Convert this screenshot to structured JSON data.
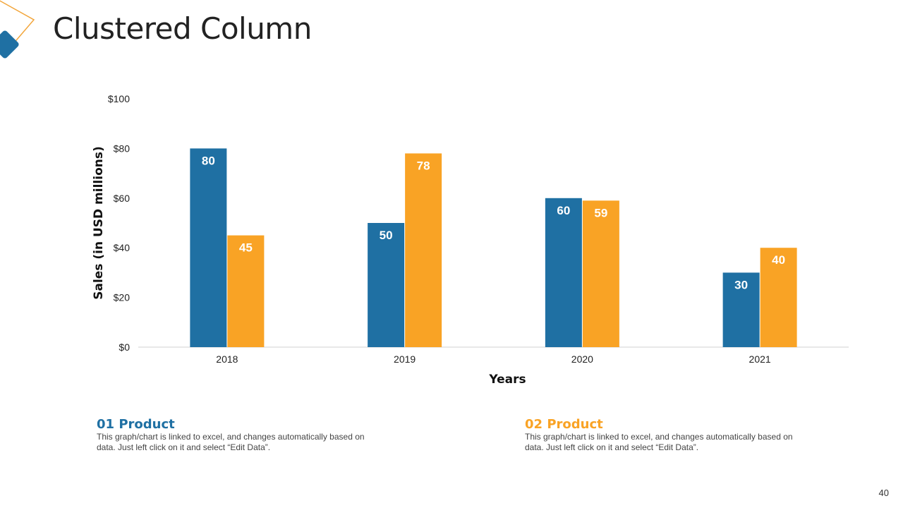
{
  "page": {
    "title": "Clustered Column",
    "page_number": "40"
  },
  "colors": {
    "series1": "#1f70a3",
    "series2": "#f9a325",
    "accent_outline": "#f2a53a",
    "accent_fill": "#1f70a3"
  },
  "legend": [
    {
      "heading": "01 Product",
      "text": "This graph/chart is linked to excel, and changes automatically based on data. Just left click on it and select “Edit Data”."
    },
    {
      "heading": "02 Product",
      "text": "This graph/chart is linked to excel, and changes automatically based on data. Just left click on it and select “Edit Data”."
    }
  ],
  "chart_data": {
    "type": "bar",
    "title": "",
    "xlabel": "Years",
    "ylabel": "Sales (in USD millions)",
    "categories": [
      "2018",
      "2019",
      "2020",
      "2021"
    ],
    "series": [
      {
        "name": "01 Product",
        "values": [
          80,
          50,
          60,
          30
        ]
      },
      {
        "name": "02 Product",
        "values": [
          45,
          78,
          59,
          40
        ]
      }
    ],
    "ylim": [
      0,
      100
    ],
    "yticks": [
      0,
      20,
      40,
      60,
      80,
      100
    ],
    "ytick_labels": [
      "$0",
      "$20",
      "$40",
      "$60",
      "$80",
      "$100"
    ],
    "grid": false,
    "data_labels": true
  }
}
